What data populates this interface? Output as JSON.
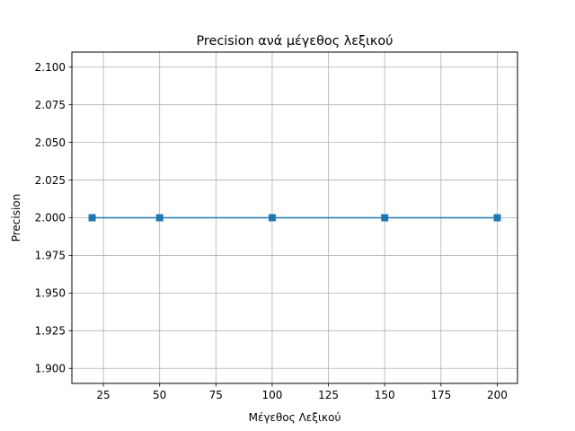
{
  "chart_data": {
    "type": "line",
    "title": "Precision ανά μέγεθος λεξικού",
    "xlabel": "Μέγεθος Λεξικού",
    "ylabel": "Precision",
    "x": [
      20,
      50,
      100,
      150,
      200
    ],
    "series": [
      {
        "values": [
          2.0,
          2.0,
          2.0,
          2.0,
          2.0
        ],
        "color": "#1f77b4",
        "marker": "square"
      }
    ],
    "xlim": [
      11,
      209
    ],
    "ylim": [
      1.89,
      2.11
    ],
    "xticks": [
      25,
      50,
      75,
      100,
      125,
      150,
      175,
      200
    ],
    "xtick_labels": [
      "25",
      "50",
      "75",
      "100",
      "125",
      "150",
      "175",
      "200"
    ],
    "yticks": [
      1.9,
      1.925,
      1.95,
      1.975,
      2.0,
      2.025,
      2.05,
      2.075,
      2.1
    ],
    "ytick_labels": [
      "1.900",
      "1.925",
      "1.950",
      "1.975",
      "2.000",
      "2.025",
      "2.050",
      "2.075",
      "2.100"
    ],
    "grid": true,
    "grid_color": "#b0b0b0",
    "legend": false
  }
}
